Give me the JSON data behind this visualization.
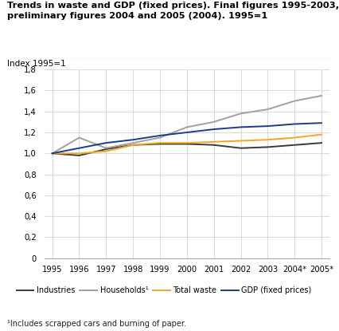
{
  "title_line1": "Trends in waste and GDP (fixed prices). Final figures 1995-2003,",
  "title_line2": "preliminary figures 2004 and 2005 (2004). 1995=1",
  "ylabel": "Index 1995=1",
  "x_labels": [
    "1995",
    "1996",
    "1997",
    "1998",
    "1999",
    "2000",
    "2001",
    "2002",
    "2003",
    "2004*",
    "2005*"
  ],
  "industries": [
    1.0,
    0.98,
    1.04,
    1.08,
    1.09,
    1.09,
    1.08,
    1.05,
    1.06,
    1.08,
    1.1
  ],
  "households": [
    1.0,
    1.15,
    1.05,
    1.1,
    1.15,
    1.25,
    1.3,
    1.38,
    1.42,
    1.5,
    1.55
  ],
  "total_waste": [
    1.0,
    1.0,
    1.02,
    1.08,
    1.1,
    1.1,
    1.11,
    1.12,
    1.13,
    1.15,
    1.18
  ],
  "gdp": [
    1.0,
    1.05,
    1.1,
    1.13,
    1.17,
    1.2,
    1.23,
    1.25,
    1.26,
    1.28,
    1.29
  ],
  "color_industries": "#3a3a3a",
  "color_households": "#a0a0a0",
  "color_total_waste": "#f5a623",
  "color_gdp": "#1f3a8a",
  "ylim": [
    0,
    1.8
  ],
  "yticks": [
    0,
    0.2,
    0.4,
    0.6,
    0.8,
    1.0,
    1.2,
    1.4,
    1.6,
    1.8
  ],
  "ytick_labels": [
    "0",
    "0,2",
    "0,4",
    "0,6",
    "0,8",
    "1,0",
    "1,2",
    "1,4",
    "1,6",
    "1,8"
  ],
  "footnote": "¹Includes scrapped cars and burning of paper.",
  "legend_items": [
    "Industries",
    "Households¹",
    "Total waste",
    "GDP (fixed prices)"
  ]
}
